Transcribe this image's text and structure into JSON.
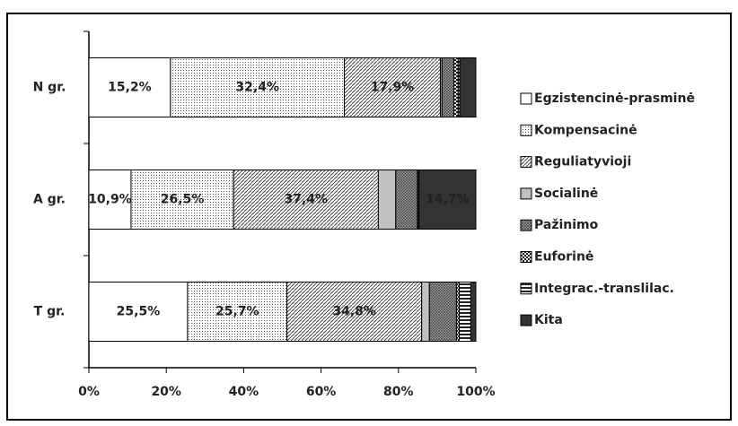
{
  "chart_data": {
    "type": "bar",
    "orientation": "horizontal",
    "stacked": "percent",
    "categories": [
      "N gr.",
      "A gr.",
      "T gr."
    ],
    "series": [
      {
        "name": "Egzistencinė-prasminė",
        "color": "#ffffff",
        "pattern": "solid",
        "values": [
          15.2,
          10.9,
          25.5
        ],
        "value_labels": [
          "15,2%",
          "10,9%",
          "25,5%"
        ]
      },
      {
        "name": "Kompensacinė",
        "color": "#ffffff",
        "pattern": "dots",
        "values": [
          32.4,
          26.5,
          25.7
        ],
        "value_labels": [
          "32,4%",
          "26,5%",
          "25,7%"
        ]
      },
      {
        "name": "Reguliatyvioji",
        "color": "#ffffff",
        "pattern": "diagonal",
        "values": [
          17.9,
          37.4,
          34.8
        ],
        "value_labels": [
          "17,9%",
          "37,4%",
          "34,8%"
        ]
      },
      {
        "name": "Socialinė",
        "color": "#c0c0c0",
        "pattern": "solid",
        "values": [
          0.3,
          4.5,
          2.0
        ],
        "value_labels": [
          null,
          null,
          null
        ]
      },
      {
        "name": "Pažinimo",
        "color": "#999999",
        "pattern": "crosshatch",
        "values": [
          2.2,
          5.6,
          7.0
        ],
        "value_labels": [
          null,
          null,
          null
        ]
      },
      {
        "name": "Euforinė",
        "color": "#555555",
        "pattern": "checker",
        "values": [
          0.8,
          0.3,
          0.7
        ],
        "value_labels": [
          null,
          null,
          null
        ]
      },
      {
        "name": "Integrac.-translilac.",
        "color": "#333333",
        "pattern": "horizontal",
        "values": [
          0.3,
          0.1,
          3.0
        ],
        "value_labels": [
          null,
          null,
          null
        ]
      },
      {
        "name": "Kita",
        "color": "#333333",
        "pattern": "solid",
        "values": [
          3.0,
          14.7,
          1.3
        ],
        "value_labels": [
          null,
          "14,7%",
          null
        ]
      }
    ],
    "xlim": [
      0,
      100
    ],
    "xticks": [
      {
        "value": 0,
        "label": "0%"
      },
      {
        "value": 20,
        "label": "20%"
      },
      {
        "value": 40,
        "label": "40%"
      },
      {
        "value": 60,
        "label": "60%"
      },
      {
        "value": 80,
        "label": "80%"
      },
      {
        "value": 100,
        "label": "100%"
      }
    ],
    "legend": "right"
  }
}
